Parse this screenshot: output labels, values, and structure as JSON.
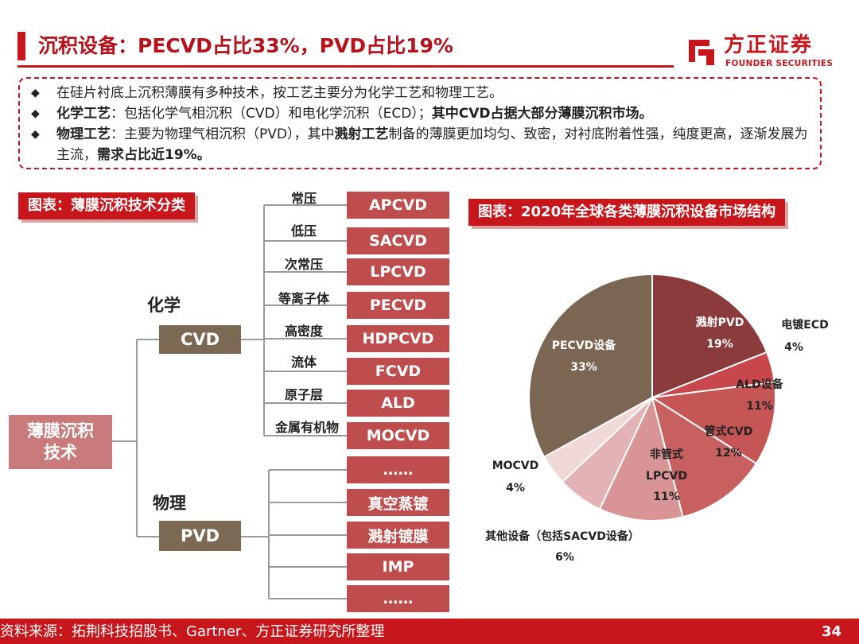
{
  "header": {
    "title": "沉积设备：PECVD占比33%，PVD占比19%"
  },
  "logo": {
    "cn": "方正证券",
    "en": "FOUNDER SECURITIES"
  },
  "notes": [
    {
      "segments": [
        {
          "text": "在硅片衬底上沉积薄膜有多种技术，按工艺主要分为化学工艺和物理工艺。",
          "bold": false
        }
      ]
    },
    {
      "segments": [
        {
          "text": "化学工艺",
          "bold": true
        },
        {
          "text": "：包括化学气相沉积（CVD）和电化学沉积（ECD）；",
          "bold": false
        },
        {
          "text": "其中CVD占据大部分薄膜沉积市场。",
          "bold": true
        }
      ]
    },
    {
      "segments": [
        {
          "text": "物理工艺",
          "bold": true
        },
        {
          "text": "：主要为物理气相沉积（PVD），其中",
          "bold": false
        },
        {
          "text": "溅射工艺",
          "bold": true
        },
        {
          "text": "制备的薄膜更加均匀、致密，对衬底附着性强，纯度更高，逐渐发展为主流，",
          "bold": false
        },
        {
          "text": "需求占比近19%。",
          "bold": true
        }
      ]
    }
  ],
  "left_chart": {
    "label": "图表：薄膜沉积技术分类",
    "root": "薄膜沉积技术",
    "chem_label": "化学",
    "cvd": "CVD",
    "phys_label": "物理",
    "pvd": "PVD",
    "cvd_items": [
      {
        "cond": "常压",
        "name": "APCVD"
      },
      {
        "cond": "低压",
        "name": "SACVD"
      },
      {
        "cond": "次常压",
        "name": "LPCVD"
      },
      {
        "cond": "等离子体",
        "name": "PECVD"
      },
      {
        "cond": "高密度",
        "name": "HDPCVD"
      },
      {
        "cond": "流体",
        "name": "FCVD"
      },
      {
        "cond": "原子层",
        "name": "ALD"
      },
      {
        "cond": "金属有机物",
        "name": "MOCVD"
      }
    ],
    "pvd_items": [
      "……",
      "真空蒸镀",
      "溅射镀膜",
      "IMP",
      "……"
    ]
  },
  "right_chart": {
    "label": "图表：2020年全球各类薄膜沉积设备市场结构"
  },
  "chart_data": {
    "type": "pie",
    "title": "图表：2020年全球各类薄膜沉积设备市场结构",
    "slices": [
      {
        "label": "溅射PVD",
        "value": 19,
        "pct": "19%",
        "color": "#8b3b3b"
      },
      {
        "label": "电镀ECD",
        "value": 4,
        "pct": "4%",
        "color": "#c8474d"
      },
      {
        "label": "ALD设备",
        "value": 11,
        "pct": "11%",
        "color": "#c65656"
      },
      {
        "label": "管式CVD",
        "value": 12,
        "pct": "12%",
        "color": "#c86060"
      },
      {
        "label": "非管式LPCVD",
        "value": 11,
        "pct": "11%",
        "color": "#d99596"
      },
      {
        "label": "其他设备（包括SACVD设备）",
        "value": 6,
        "pct": "6%",
        "color": "#e3b2b4"
      },
      {
        "label": "MOCVD",
        "value": 4,
        "pct": "4%",
        "color": "#f0d8d8"
      },
      {
        "label": "PECVD设备",
        "value": 33,
        "pct": "33%",
        "color": "#7a6652"
      }
    ]
  },
  "footer": {
    "source": "资料来源：拓荆科技招股书、Gartner、方正证券研究所整理",
    "page": "34"
  }
}
